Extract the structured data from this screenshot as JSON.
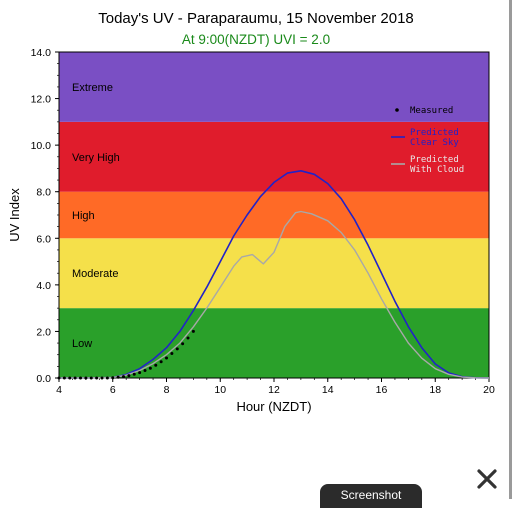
{
  "header": {
    "title": "Today's UV - Paraparaumu, 15 November 2018",
    "subtitle": "At  9:00(NZDT) UVI =  2.0"
  },
  "chart_data": {
    "type": "line",
    "xlabel": "Hour (NZDT)",
    "ylabel": "UV Index",
    "xlim": [
      4,
      20
    ],
    "ylim": [
      0,
      14
    ],
    "x_ticks": [
      "4",
      "6",
      "8",
      "10",
      "12",
      "14",
      "16",
      "18",
      "20"
    ],
    "y_ticks": [
      "0.0",
      "2.0",
      "4.0",
      "6.0",
      "8.0",
      "10.0",
      "12.0",
      "14.0"
    ],
    "bands": [
      {
        "label": "Low",
        "from": 0,
        "to": 3,
        "color": "#2aa02a"
      },
      {
        "label": "Moderate",
        "from": 3,
        "to": 6,
        "color": "#f5e04a"
      },
      {
        "label": "High",
        "from": 6,
        "to": 8,
        "color": "#ff6a26"
      },
      {
        "label": "Very High",
        "from": 8,
        "to": 11,
        "color": "#e01c2c"
      },
      {
        "label": "Extreme",
        "from": 11,
        "to": 14,
        "color": "#7a4fc4"
      }
    ],
    "legend_position": "top-right",
    "series": [
      {
        "name": "Measured",
        "style": "dots",
        "color": "#000000",
        "x": [
          4.0,
          4.2,
          4.4,
          4.6,
          4.8,
          5.0,
          5.2,
          5.4,
          5.6,
          5.8,
          6.0,
          6.2,
          6.4,
          6.6,
          6.8,
          7.0,
          7.2,
          7.4,
          7.6,
          7.8,
          8.0,
          8.2,
          8.4,
          8.6,
          8.8,
          9.0
        ],
        "y": [
          0,
          0,
          0,
          0,
          0,
          0,
          0,
          0,
          0,
          0,
          0.01,
          0.03,
          0.06,
          0.1,
          0.16,
          0.23,
          0.32,
          0.42,
          0.55,
          0.7,
          0.86,
          1.05,
          1.25,
          1.47,
          1.72,
          2.0
        ]
      },
      {
        "name": "Predicted\nClear Sky",
        "style": "line",
        "color": "#2222c8",
        "x": [
          4,
          5,
          6,
          6.5,
          7,
          7.5,
          8,
          8.5,
          9,
          9.5,
          10,
          10.5,
          11,
          11.5,
          12,
          12.5,
          13,
          13.5,
          14,
          14.5,
          15,
          15.5,
          16,
          16.5,
          17,
          17.5,
          18,
          18.5,
          19,
          19.5,
          20
        ],
        "y": [
          0,
          0,
          0.02,
          0.15,
          0.4,
          0.8,
          1.3,
          2.0,
          2.9,
          3.9,
          5.0,
          6.1,
          7.0,
          7.8,
          8.4,
          8.8,
          8.9,
          8.75,
          8.35,
          7.7,
          6.8,
          5.7,
          4.5,
          3.3,
          2.2,
          1.3,
          0.6,
          0.22,
          0.05,
          0.01,
          0
        ]
      },
      {
        "name": "Predicted\nWith Cloud",
        "style": "line",
        "color": "#a8a8a8",
        "x": [
          4,
          5,
          6,
          6.5,
          7,
          7.5,
          8,
          8.5,
          9,
          9.5,
          10,
          10.5,
          10.8,
          11.2,
          11.6,
          12,
          12.4,
          12.8,
          13,
          13.4,
          14,
          14.5,
          15,
          15.5,
          16,
          16.5,
          17,
          17.5,
          18,
          18.5,
          19,
          19.5,
          20
        ],
        "y": [
          0,
          0,
          0.02,
          0.12,
          0.32,
          0.62,
          1.0,
          1.5,
          2.2,
          3.0,
          3.9,
          4.8,
          5.2,
          5.3,
          4.9,
          5.4,
          6.5,
          7.1,
          7.15,
          7.05,
          6.75,
          6.25,
          5.5,
          4.5,
          3.4,
          2.4,
          1.5,
          0.85,
          0.4,
          0.16,
          0.04,
          0.01,
          0
        ]
      }
    ]
  },
  "ui": {
    "close_icon": "close-icon",
    "screenshot_label": "Screenshot"
  }
}
